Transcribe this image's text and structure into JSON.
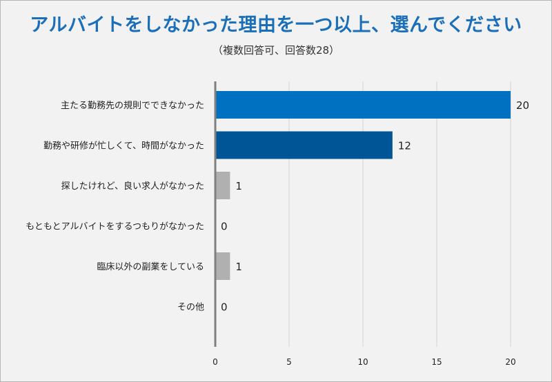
{
  "chart_data": {
    "type": "bar",
    "orientation": "horizontal",
    "title": "アルバイトをしなかった理由を一つ以上、選んでください",
    "subtitle": "（複数回答可、回答数28）",
    "categories": [
      "主たる勤務先の規則でできなかった",
      "勤務や研修が忙しくて、時間がなかった",
      "探したけれど、良い求人がなかった",
      "もともとアルバイトをするつもりがなかった",
      "臨床以外の副業をしている",
      "その他"
    ],
    "values": [
      20,
      12,
      1,
      0,
      1,
      0
    ],
    "bar_colors": [
      "#0070c0",
      "#005596",
      "#b0b0b0",
      "#b0b0b0",
      "#b0b0b0",
      "#b0b0b0"
    ],
    "xticks": [
      0,
      5,
      10,
      15,
      20
    ],
    "xlim": [
      0,
      20
    ],
    "grid": true,
    "legend": "none"
  }
}
